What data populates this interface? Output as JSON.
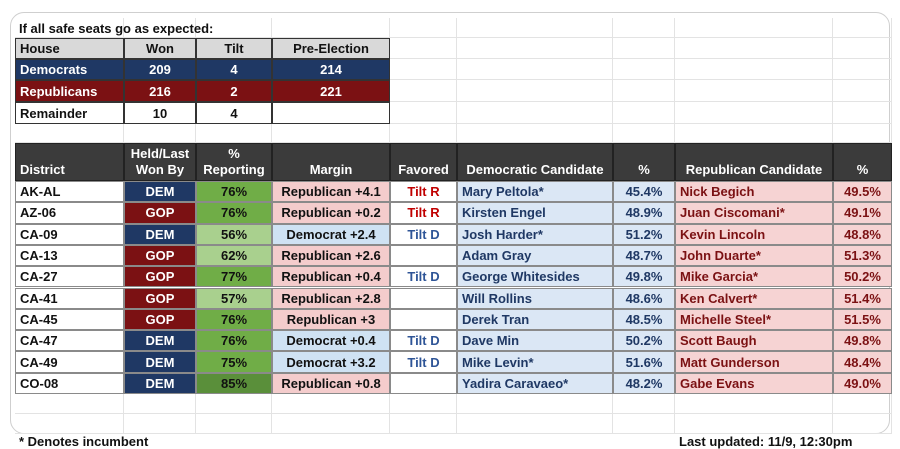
{
  "header": {
    "title": "If all safe seats go as expected:"
  },
  "summary": {
    "columns": [
      "House",
      "Won",
      "Tilt",
      "Pre-Election"
    ],
    "rows": [
      [
        "Democrats",
        209,
        4,
        214
      ],
      [
        "Republicans",
        216,
        2,
        221
      ],
      [
        "Remainder",
        10,
        4
      ]
    ]
  },
  "table": {
    "columns": [
      "District",
      "Held/Last Won By",
      "% Reporting",
      "Margin",
      "Favored",
      "Democratic Candidate",
      "%",
      "Republican Candidate",
      "%"
    ],
    "rows": [
      [
        "AK-AL",
        "DEM",
        "76%",
        "Republican +4.1",
        "Tilt R",
        "Mary Peltola*",
        "45.4%",
        "Nick Begich",
        "49.5%"
      ],
      [
        "AZ-06",
        "GOP",
        "76%",
        "Republican +0.2",
        "Tilt R",
        "Kirsten Engel",
        "48.9%",
        "Juan Ciscomani*",
        "49.1%"
      ],
      [
        "CA-09",
        "DEM",
        "56%",
        "Democrat +2.4",
        "Tilt D",
        "Josh Harder*",
        "51.2%",
        "Kevin Lincoln",
        "48.8%"
      ],
      [
        "CA-13",
        "GOP",
        "62%",
        "Republican +2.6",
        null,
        "Adam Gray",
        "48.7%",
        "John Duarte*",
        "51.3%"
      ],
      [
        "CA-27",
        "GOP",
        "77%",
        "Republican +0.4",
        "Tilt D",
        "George Whitesides",
        "49.8%",
        "Mike Garcia*",
        "50.2%"
      ],
      [
        "CA-41",
        "GOP",
        "57%",
        "Republican +2.8",
        null,
        "Will Rollins",
        "48.6%",
        "Ken Calvert*",
        "51.4%"
      ],
      [
        "CA-45",
        "GOP",
        "76%",
        "Republican +3",
        null,
        "Derek Tran",
        "48.5%",
        "Michelle Steel*",
        "51.5%"
      ],
      [
        "CA-47",
        "DEM",
        "76%",
        "Democrat +0.4",
        "Tilt D",
        "Dave Min",
        "50.2%",
        "Scott Baugh",
        "49.8%"
      ],
      [
        "CA-49",
        "DEM",
        "75%",
        "Democrat +3.2",
        "Tilt D",
        "Mike Levin*",
        "51.6%",
        "Matt Gunderson",
        "48.4%"
      ],
      [
        "CO-08",
        "DEM",
        "85%",
        "Republican +0.8",
        null,
        "Yadira Caravaeo*",
        "48.2%",
        "Gabe Evans",
        "49.0%"
      ]
    ]
  },
  "notes": {
    "incumbent": "* Denotes incumbent",
    "updated": "Last updated: 11/9, 12:30pm"
  }
}
